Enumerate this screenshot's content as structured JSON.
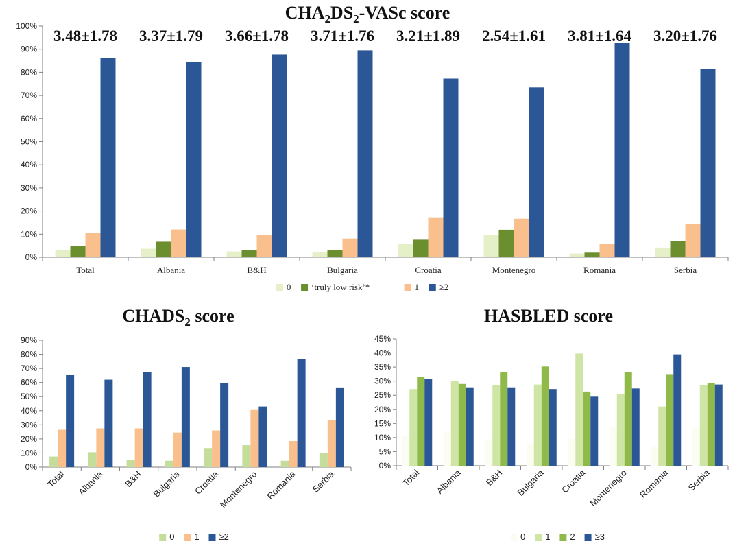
{
  "chart_data": [
    {
      "type": "bar",
      "title": "CHA₂DS₂-VASc score",
      "categories": [
        "Total",
        "Albania",
        "B&H",
        "Bulgaria",
        "Croatia",
        "Montenegro",
        "Romania",
        "Serbia"
      ],
      "annotations": [
        "3.48±1.78",
        "3.37±1.79",
        "3.66±1.78",
        "3.71±1.76",
        "3.21±1.89",
        "2.54±1.61",
        "3.81±1.64",
        "3.20±1.76"
      ],
      "ylim": [
        0,
        100
      ],
      "yticks": [
        "0%",
        "10%",
        "20%",
        "30%",
        "40%",
        "50%",
        "60%",
        "70%",
        "80%",
        "90%",
        "100%"
      ],
      "legend_position": "bottom",
      "series": [
        {
          "name": "0",
          "color": "#e6f0c8",
          "values": [
            3.3,
            3.7,
            2.5,
            2.4,
            5.7,
            9.8,
            1.6,
            4.2
          ]
        },
        {
          "name": "‘truly low risk’*",
          "color": "#6b8e2f",
          "values": [
            5.0,
            6.7,
            3.0,
            3.2,
            7.6,
            11.9,
            2.0,
            7.0
          ]
        },
        {
          "name": "1",
          "color": "#f9c08d",
          "values": [
            10.6,
            12.0,
            9.8,
            8.1,
            17.0,
            16.7,
            5.8,
            14.4
          ]
        },
        {
          "name": "≥2",
          "color": "#2b5797",
          "values": [
            86.1,
            84.3,
            87.7,
            89.5,
            77.3,
            73.5,
            92.6,
            81.4
          ]
        }
      ]
    },
    {
      "type": "bar",
      "title": "CHADS₂ score",
      "categories": [
        "Total",
        "Albania",
        "B&H",
        "Bulgaria",
        "Croatia",
        "Montenegro",
        "Romania",
        "Serbia"
      ],
      "ylim": [
        0,
        90
      ],
      "yticks": [
        "0%",
        "10%",
        "20%",
        "30%",
        "40%",
        "50%",
        "60%",
        "70%",
        "80%",
        "90%"
      ],
      "legend_position": "bottom",
      "series": [
        {
          "name": "0",
          "color": "#c4dd9a",
          "values": [
            7.5,
            10.5,
            5.0,
            4.5,
            13.5,
            15.5,
            4.5,
            10.0
          ]
        },
        {
          "name": "1",
          "color": "#f9c08d",
          "values": [
            26.5,
            27.5,
            27.5,
            24.5,
            26.0,
            41.0,
            18.5,
            33.5
          ]
        },
        {
          "name": "≥2",
          "color": "#2b5797",
          "values": [
            65.5,
            62.0,
            67.5,
            71.0,
            59.5,
            43.0,
            76.5,
            56.5
          ]
        }
      ]
    },
    {
      "type": "bar",
      "title": "HASBLED score",
      "categories": [
        "Total",
        "Albania",
        "B&H",
        "Bulgaria",
        "Croatia",
        "Montenegro",
        "Romania",
        "Serbia"
      ],
      "ylim": [
        0,
        45
      ],
      "yticks": [
        "0%",
        "5%",
        "10%",
        "15%",
        "20%",
        "25%",
        "30%",
        "35%",
        "40%",
        "45%"
      ],
      "legend_position": "bottom",
      "series": [
        {
          "name": "0",
          "color": "#fbfdf2",
          "values": [
            10.5,
            12.0,
            9.5,
            8.0,
            9.5,
            14.0,
            7.0,
            13.5
          ]
        },
        {
          "name": "1",
          "color": "#cfe5a5",
          "values": [
            27.2,
            30.0,
            28.7,
            28.8,
            39.8,
            25.5,
            21.0,
            28.5
          ]
        },
        {
          "name": "2",
          "color": "#8fba4a",
          "values": [
            31.5,
            29.0,
            33.2,
            35.2,
            26.3,
            33.3,
            32.5,
            29.3
          ]
        },
        {
          "name": "≥3",
          "color": "#2b5797",
          "values": [
            30.8,
            27.8,
            27.8,
            27.2,
            24.5,
            27.4,
            39.5,
            28.8
          ]
        }
      ]
    }
  ]
}
